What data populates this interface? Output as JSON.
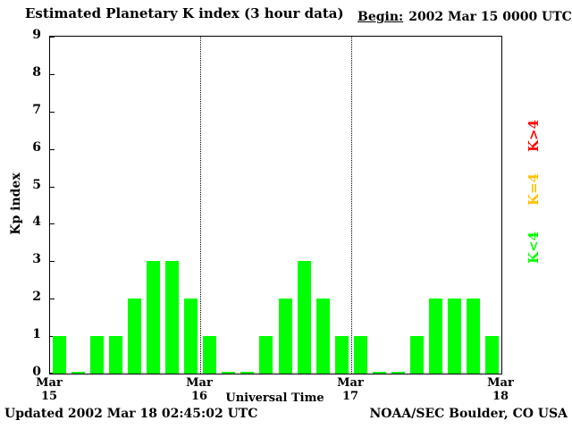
{
  "header": {
    "title": "Estimated Planetary K index (3 hour data)",
    "begin_label": "Begin:",
    "begin_value": "2002 Mar 15 0000 UTC"
  },
  "footer": {
    "updated": "Updated 2002 Mar 18 02:45:02 UTC",
    "credit": "NOAA/SEC Boulder, CO USA"
  },
  "legend": [
    {
      "label": "K>4",
      "color": "#ff0000"
    },
    {
      "label": "K=4",
      "color": "#ffc000"
    },
    {
      "label": "K<4",
      "color": "#00ff00"
    }
  ],
  "chart_data": {
    "type": "bar",
    "title": "Estimated Planetary K index (3 hour data)",
    "xlabel": "Universal Time",
    "ylabel": "Kp index",
    "ylim": [
      0,
      9
    ],
    "yticks": [
      0,
      1,
      2,
      3,
      4,
      5,
      6,
      7,
      8,
      9
    ],
    "xticks": [
      "Mar 15",
      "Mar 16",
      "Mar 17",
      "Mar 18"
    ],
    "bars_per_day": 8,
    "hours_per_bar": 3,
    "bar_color": "#00ff00",
    "grid": "dotted vertical lines at interior day boundaries",
    "values": [
      1,
      0,
      1,
      1,
      2,
      3,
      3,
      2,
      1,
      0,
      0,
      1,
      2,
      3,
      2,
      1,
      1,
      0,
      0,
      1,
      2,
      2,
      2,
      1
    ]
  }
}
